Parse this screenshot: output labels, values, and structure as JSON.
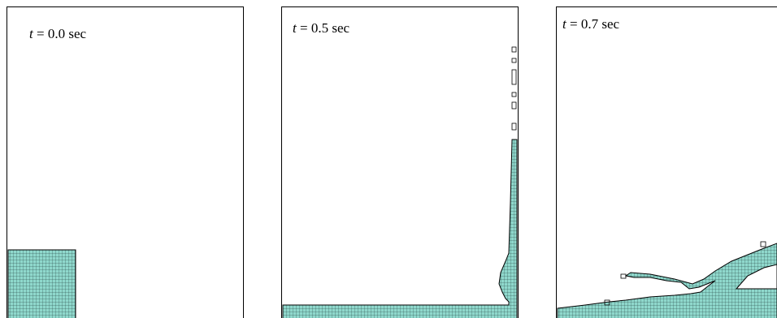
{
  "panels": [
    {
      "variable": "t",
      "text": "= 0.0 sec"
    },
    {
      "variable": "t",
      "text": "= 0.5 sec"
    },
    {
      "variable": "t",
      "text": "= 0.7 sec"
    }
  ]
}
